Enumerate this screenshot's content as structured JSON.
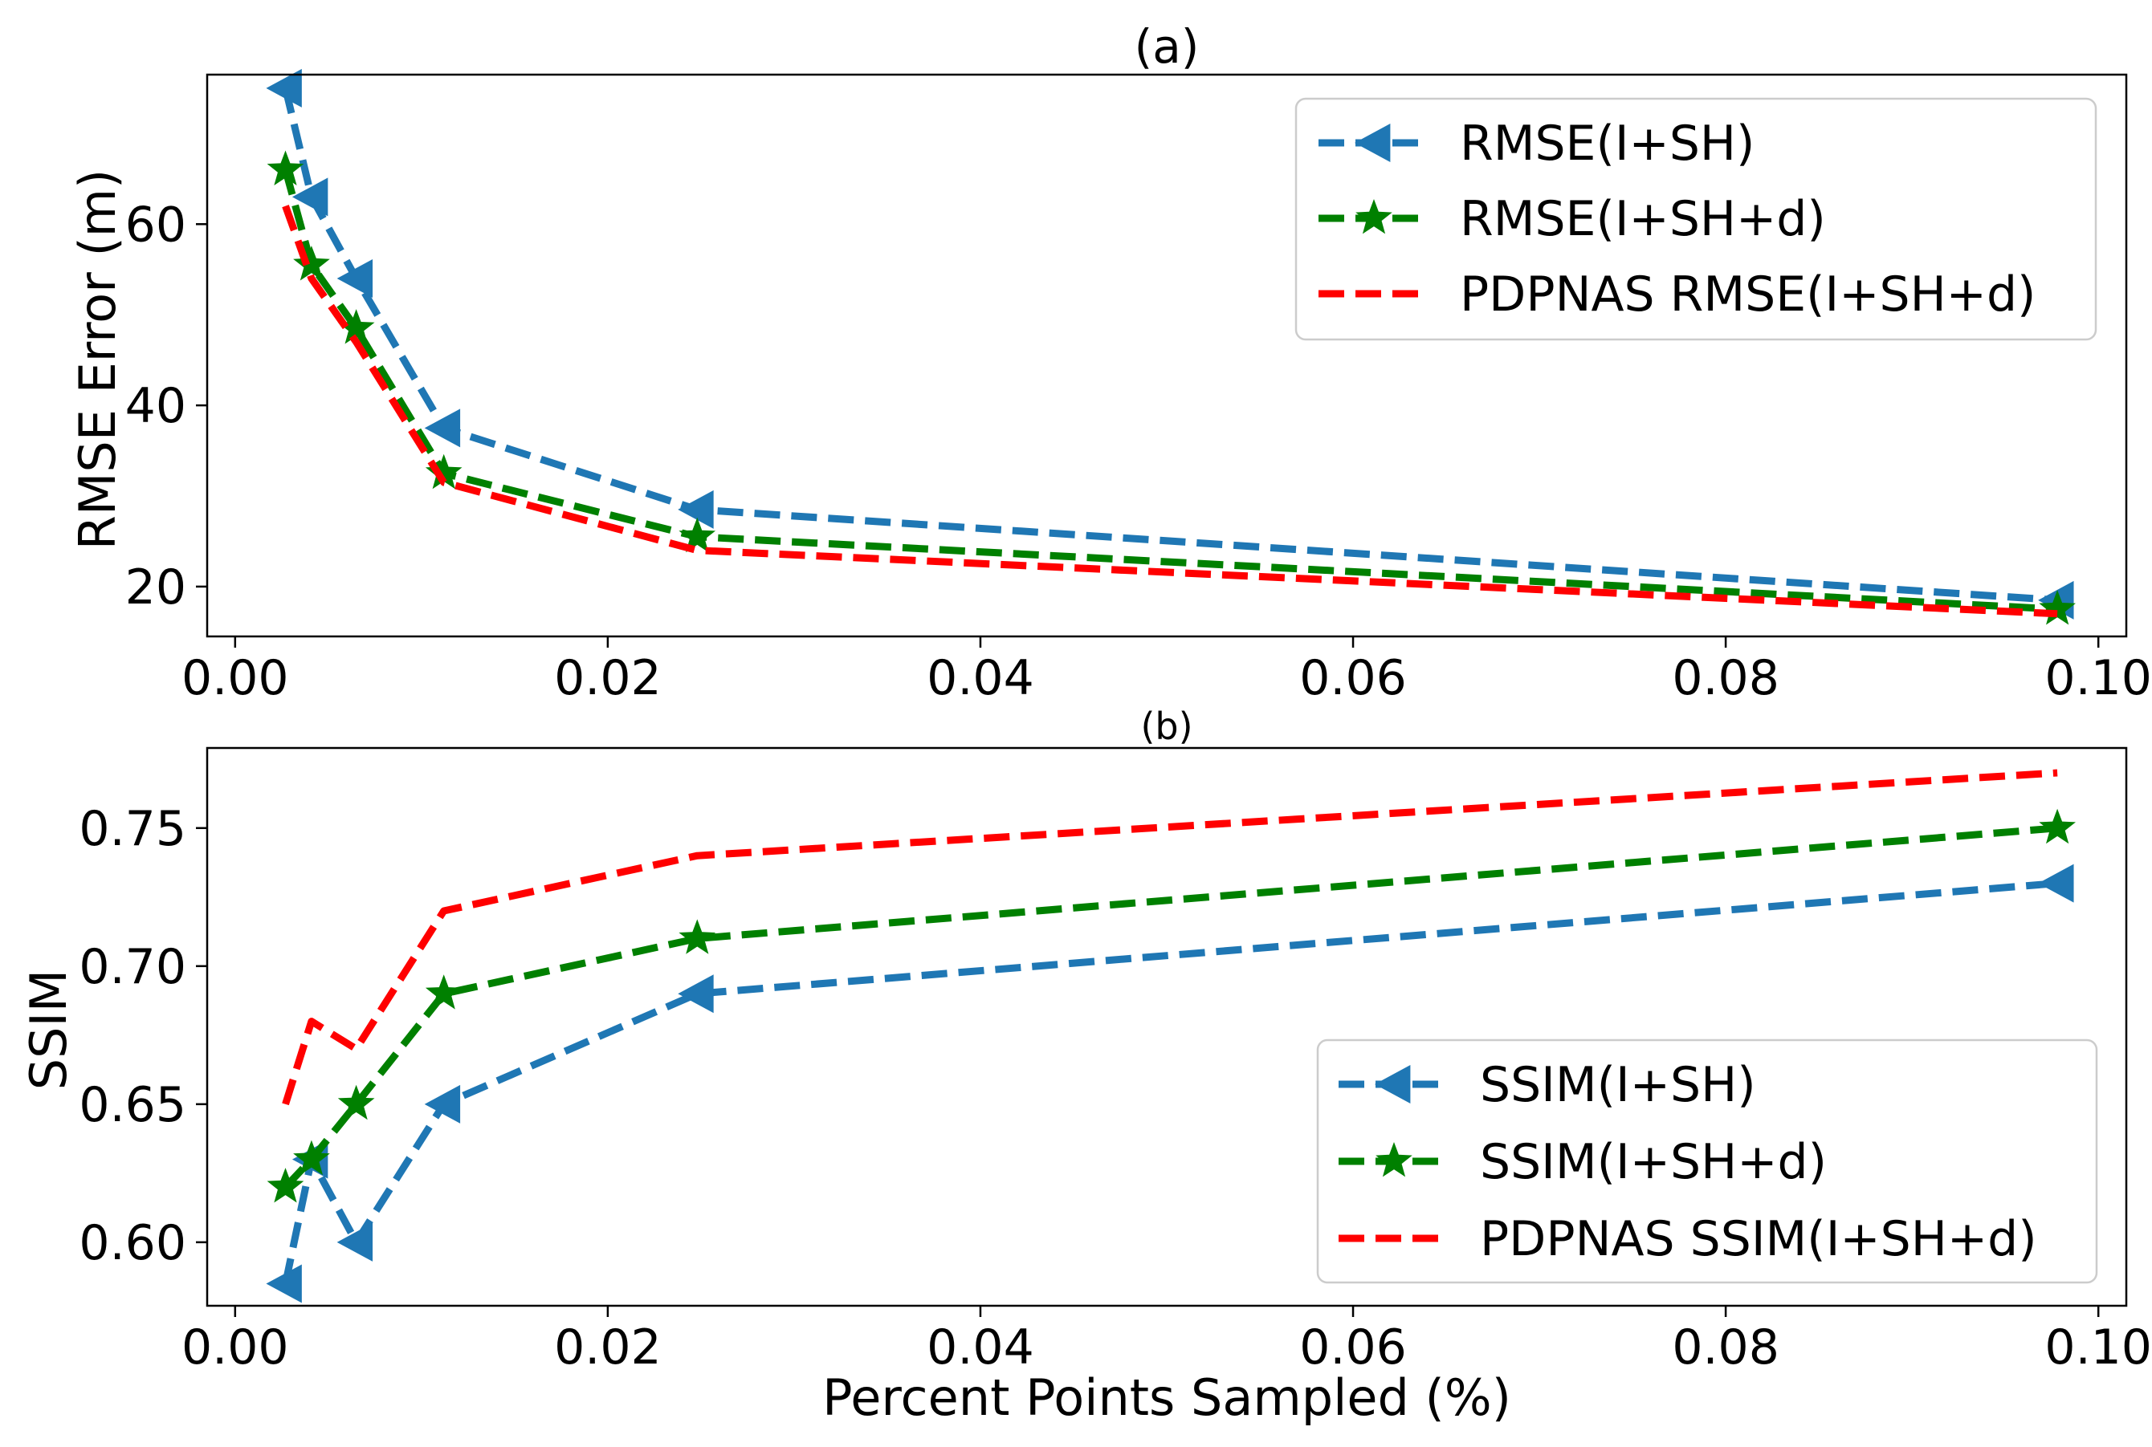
{
  "chart_data": [
    {
      "id": "a",
      "type": "line",
      "title": "(a)",
      "xlabel": "",
      "ylabel": "RMSE Error (m)",
      "xlim": [
        -0.0015,
        0.1015
      ],
      "ylim": [
        14.5,
        76.5
      ],
      "xticks": [
        0.0,
        0.02,
        0.04,
        0.06,
        0.08,
        0.1
      ],
      "xtick_labels": [
        "0.00",
        "0.02",
        "0.04",
        "0.06",
        "0.08",
        "0.10"
      ],
      "yticks": [
        20,
        40,
        60
      ],
      "ytick_labels": [
        "20",
        "40",
        "60"
      ],
      "grid": false,
      "legend_position": "upper-right",
      "series": [
        {
          "name": "RMSE(I+SH)",
          "color": "#1f77b4",
          "marker": "triangle-left",
          "x": [
            0.0027,
            0.0041,
            0.0065,
            0.0112,
            0.0248,
            0.0978
          ],
          "y": [
            75.0,
            63.0,
            54.0,
            37.5,
            28.5,
            18.5
          ]
        },
        {
          "name": "RMSE(I+SH+d)",
          "color": "#008000",
          "marker": "star",
          "x": [
            0.0027,
            0.0041,
            0.0065,
            0.0112,
            0.0248,
            0.0978
          ],
          "y": [
            66.0,
            55.5,
            48.5,
            32.5,
            25.5,
            17.5
          ]
        },
        {
          "name": "PDPNAS RMSE(I+SH+d)",
          "color": "#ff0000",
          "marker": "none",
          "x": [
            0.0027,
            0.0041,
            0.0065,
            0.0112,
            0.0248,
            0.0978
          ],
          "y": [
            62.0,
            54.0,
            47.0,
            31.5,
            24.0,
            17.0
          ]
        }
      ]
    },
    {
      "id": "b",
      "type": "line",
      "title": "(b)",
      "xlabel": "Percent Points Sampled (%)",
      "ylabel": "SSIM",
      "xlim": [
        -0.0015,
        0.1015
      ],
      "ylim": [
        0.577,
        0.779
      ],
      "xticks": [
        0.0,
        0.02,
        0.04,
        0.06,
        0.08,
        0.1
      ],
      "xtick_labels": [
        "0.00",
        "0.02",
        "0.04",
        "0.06",
        "0.08",
        "0.10"
      ],
      "yticks": [
        0.6,
        0.65,
        0.7,
        0.75
      ],
      "ytick_labels": [
        "0.60",
        "0.65",
        "0.70",
        "0.75"
      ],
      "grid": false,
      "legend_position": "lower-right",
      "series": [
        {
          "name": "SSIM(I+SH)",
          "color": "#1f77b4",
          "marker": "triangle-left",
          "x": [
            0.0027,
            0.0041,
            0.0065,
            0.0112,
            0.0248,
            0.0978
          ],
          "y": [
            0.585,
            0.63,
            0.6,
            0.65,
            0.69,
            0.73
          ]
        },
        {
          "name": "SSIM(I+SH+d)",
          "color": "#008000",
          "marker": "star",
          "x": [
            0.0027,
            0.0041,
            0.0065,
            0.0112,
            0.0248,
            0.0978
          ],
          "y": [
            0.62,
            0.63,
            0.65,
            0.69,
            0.71,
            0.75
          ]
        },
        {
          "name": "PDPNAS SSIM(I+SH+d)",
          "color": "#ff0000",
          "marker": "none",
          "x": [
            0.0027,
            0.0041,
            0.0065,
            0.0112,
            0.0248,
            0.0978
          ],
          "y": [
            0.65,
            0.68,
            0.67,
            0.72,
            0.74,
            0.77
          ]
        }
      ]
    }
  ]
}
